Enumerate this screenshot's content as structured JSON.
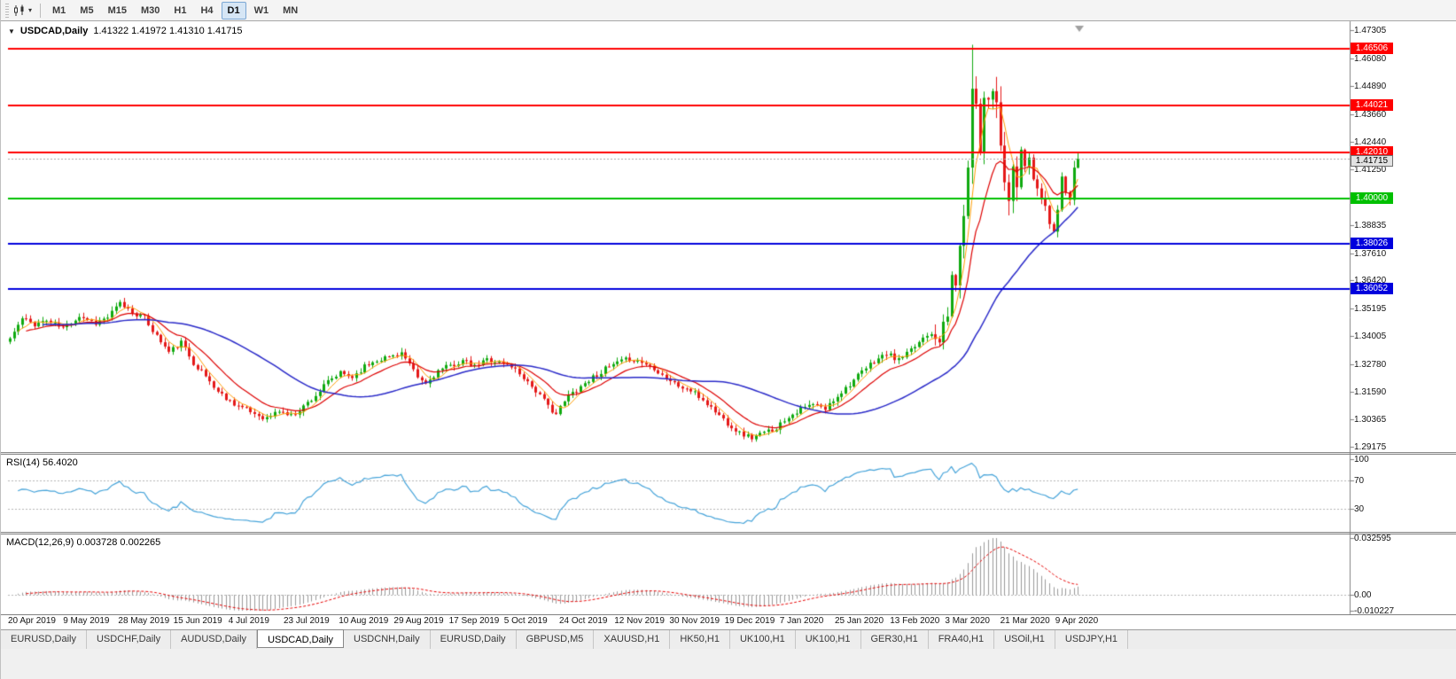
{
  "icons": {
    "symbol_caret": "▼",
    "dropdown_caret": "▾"
  },
  "toolbar": {
    "timeframes": [
      "M1",
      "M5",
      "M15",
      "M30",
      "H1",
      "H4",
      "D1",
      "W1",
      "MN"
    ],
    "active_timeframe": "D1"
  },
  "chart": {
    "symbol": "USDCAD,Daily",
    "ohlc_string": "1.41322 1.41972 1.41310 1.41715"
  },
  "rsi": {
    "title": "RSI(14)",
    "value": "56.4020",
    "ticks": [
      "100",
      "70",
      "30"
    ],
    "level_lines": [
      70,
      30
    ]
  },
  "macd": {
    "title": "MACD(12,26,9)",
    "values": "0.003728 0.002265",
    "ticks": {
      "max": "0.032595",
      "zero": "0.00",
      "min": "-0.010227"
    }
  },
  "tabs": {
    "items": [
      "EURUSD,Daily",
      "USDCHF,Daily",
      "AUDUSD,Daily",
      "USDCAD,Daily",
      "USDCNH,Daily",
      "EURUSD,Daily",
      "GBPUSD,M5",
      "XAUUSD,H1",
      "HK50,H1",
      "UK100,H1",
      "UK100,H1",
      "GER30,H1",
      "FRA40,H1",
      "USOil,H1",
      "USDJPY,H1"
    ],
    "active_index": 3
  },
  "colors": {
    "up": "#0faa0f",
    "down": "#e41818",
    "ma_fast": "#ff9d00",
    "ma_mid": "#dd0000",
    "ma_slow": "#2929c8",
    "rsi_line": "#45a3d9",
    "macd_hist": "#9a9a9a",
    "macd_signal": "#e60000",
    "axis": "#808080",
    "dashed": "#b4b4b4",
    "bid_line": "#a8a8a8",
    "shift_marker": "#a0a0a0"
  },
  "chart_data": {
    "type": "candlestick",
    "title": "USDCAD,Daily",
    "symbol": "USDCAD",
    "timeframe": "D1",
    "y_axis_ticks": [
      "1.47305",
      "1.46080",
      "1.44890",
      "1.43660",
      "1.42440",
      "1.41250",
      "1.40025",
      "1.38835",
      "1.37610",
      "1.36420",
      "1.35195",
      "1.34005",
      "1.32780",
      "1.31590",
      "1.30365",
      "1.29175"
    ],
    "x_axis_labels": [
      "20 Apr 2019",
      "9 May 2019",
      "28 May 2019",
      "15 Jun 2019",
      "4 Jul 2019",
      "23 Jul 2019",
      "10 Aug 2019",
      "29 Aug 2019",
      "17 Sep 2019",
      "5 Oct 2019",
      "24 Oct 2019",
      "12 Nov 2019",
      "30 Nov 2019",
      "19 Dec 2019",
      "7 Jan 2020",
      "25 Jan 2020",
      "13 Feb 2020",
      "3 Mar 2020",
      "21 Mar 2020",
      "9 Apr 2020"
    ],
    "horizontal_lines": [
      {
        "price": 1.46506,
        "label": "1.46506",
        "color": "#ff0000"
      },
      {
        "price": 1.44021,
        "label": "1.44021",
        "color": "#ff0000"
      },
      {
        "price": 1.4201,
        "label": "1.42010",
        "color": "#ff0000"
      },
      {
        "price": 1.4,
        "label": "1.40000",
        "color": "#00c000"
      },
      {
        "price": 1.38026,
        "label": "1.38026",
        "color": "#0000dd"
      },
      {
        "price": 1.36052,
        "label": "1.36052",
        "color": "#0000dd"
      }
    ],
    "bid": {
      "price": 1.41715,
      "label": "1.41715"
    },
    "current_ohlc": {
      "open": 1.41322,
      "high": 1.41972,
      "low": 1.4131,
      "close": 1.41715
    },
    "num_candles": 263,
    "noise_seed": 11,
    "close_anchors": [
      [
        0,
        1.339
      ],
      [
        3,
        1.3475
      ],
      [
        6,
        1.3452
      ],
      [
        9,
        1.3468
      ],
      [
        13,
        1.3435
      ],
      [
        17,
        1.3488
      ],
      [
        21,
        1.3458
      ],
      [
        24,
        1.3482
      ],
      [
        27,
        1.3542
      ],
      [
        30,
        1.3505
      ],
      [
        33,
        1.3478
      ],
      [
        36,
        1.34
      ],
      [
        39,
        1.333
      ],
      [
        42,
        1.3372
      ],
      [
        45,
        1.3285
      ],
      [
        48,
        1.3225
      ],
      [
        51,
        1.3158
      ],
      [
        54,
        1.3118
      ],
      [
        57,
        1.3088
      ],
      [
        60,
        1.3062
      ],
      [
        63,
        1.3042
      ],
      [
        66,
        1.3075
      ],
      [
        69,
        1.3052
      ],
      [
        72,
        1.3095
      ],
      [
        75,
        1.3142
      ],
      [
        78,
        1.32
      ],
      [
        81,
        1.3238
      ],
      [
        84,
        1.3222
      ],
      [
        87,
        1.3268
      ],
      [
        90,
        1.3298
      ],
      [
        93,
        1.331
      ],
      [
        96,
        1.3328
      ],
      [
        98,
        1.3272
      ],
      [
        100,
        1.3218
      ],
      [
        102,
        1.3192
      ],
      [
        105,
        1.3248
      ],
      [
        108,
        1.327
      ],
      [
        111,
        1.3292
      ],
      [
        114,
        1.3265
      ],
      [
        117,
        1.33
      ],
      [
        120,
        1.3286
      ],
      [
        123,
        1.327
      ],
      [
        126,
        1.3222
      ],
      [
        129,
        1.3162
      ],
      [
        132,
        1.3095
      ],
      [
        134,
        1.3062
      ],
      [
        137,
        1.314
      ],
      [
        140,
        1.3182
      ],
      [
        143,
        1.3222
      ],
      [
        146,
        1.3256
      ],
      [
        149,
        1.3282
      ],
      [
        152,
        1.3302
      ],
      [
        155,
        1.3286
      ],
      [
        158,
        1.3262
      ],
      [
        161,
        1.3218
      ],
      [
        164,
        1.3182
      ],
      [
        167,
        1.3162
      ],
      [
        170,
        1.3122
      ],
      [
        173,
        1.3072
      ],
      [
        176,
        1.3022
      ],
      [
        179,
        1.2978
      ],
      [
        182,
        1.2958
      ],
      [
        185,
        1.2978
      ],
      [
        188,
        1.3002
      ],
      [
        191,
        1.3052
      ],
      [
        194,
        1.3082
      ],
      [
        197,
        1.3102
      ],
      [
        200,
        1.3082
      ],
      [
        203,
        1.3142
      ],
      [
        206,
        1.3192
      ],
      [
        209,
        1.3242
      ],
      [
        212,
        1.3292
      ],
      [
        215,
        1.3322
      ],
      [
        218,
        1.3295
      ],
      [
        221,
        1.3335
      ],
      [
        224,
        1.3395
      ],
      [
        226,
        1.3425
      ],
      [
        228,
        1.3395
      ],
      [
        230,
        1.3482
      ],
      [
        231,
        1.3662
      ],
      [
        232,
        1.3635
      ],
      [
        233,
        1.3752
      ],
      [
        234,
        1.3962
      ],
      [
        235,
        1.4102
      ],
      [
        236,
        1.4498
      ],
      [
        237,
        1.4452
      ],
      [
        238,
        1.4205
      ],
      [
        239,
        1.4448
      ],
      [
        241,
        1.4478
      ],
      [
        242,
        1.4452
      ],
      [
        243,
        1.4192
      ],
      [
        244,
        1.4062
      ],
      [
        245,
        1.3992
      ],
      [
        246,
        1.4092
      ],
      [
        247,
        1.4062
      ],
      [
        248,
        1.4208
      ],
      [
        249,
        1.4138
      ],
      [
        250,
        1.4188
      ],
      [
        251,
        1.4082
      ],
      [
        252,
        1.4022
      ],
      [
        253,
        1.4008
      ],
      [
        254,
        1.3968
      ],
      [
        255,
        1.3892
      ],
      [
        256,
        1.3872
      ],
      [
        257,
        1.3962
      ],
      [
        258,
        1.4088
      ],
      [
        259,
        1.4048
      ],
      [
        260,
        1.4012
      ],
      [
        261,
        1.4122
      ],
      [
        262,
        1.41715
      ]
    ],
    "volatility_regimes": [
      {
        "until": 226,
        "vol": 0.0042
      },
      {
        "until": 233,
        "vol": 0.01
      },
      {
        "until": 248,
        "vol": 0.017
      },
      {
        "until": 263,
        "vol": 0.0085
      }
    ],
    "spike": {
      "index": 236,
      "high": 1.4668
    },
    "dip": {
      "index": 256,
      "low": 1.3855
    },
    "indicators": {
      "moving_averages": [
        {
          "type": "sma",
          "period": 5,
          "color": "#ff9d00"
        },
        {
          "type": "ema",
          "period": 13,
          "color": "#dd0000"
        },
        {
          "type": "sma",
          "period": 40,
          "color": "#2929c8"
        }
      ],
      "rsi": {
        "period": 14,
        "current": 56.402,
        "levels": [
          70,
          30
        ]
      },
      "macd": {
        "fast": 12,
        "slow": 26,
        "signal": 9,
        "current": 0.003728,
        "current_signal": 0.002265
      }
    },
    "y_range": {
      "top": 1.47702,
      "bottom": 1.28912
    }
  }
}
